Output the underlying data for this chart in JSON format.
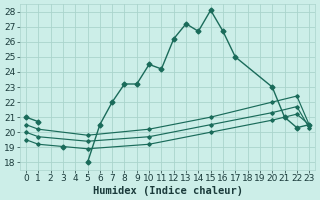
{
  "xlabel": "Humidex (Indice chaleur)",
  "bg_color": "#cceee8",
  "grid_color": "#aad4cc",
  "line_color": "#1a6b5a",
  "xlim": [
    -0.5,
    23.5
  ],
  "ylim": [
    17.5,
    28.5
  ],
  "xticks": [
    0,
    1,
    2,
    3,
    4,
    5,
    6,
    7,
    8,
    9,
    10,
    11,
    12,
    13,
    14,
    15,
    16,
    17,
    18,
    19,
    20,
    21,
    22,
    23
  ],
  "yticks": [
    18,
    19,
    20,
    21,
    22,
    23,
    24,
    25,
    26,
    27,
    28
  ],
  "main_line_x": [
    0,
    1,
    2,
    3,
    4,
    5,
    6,
    7,
    8,
    9,
    10,
    11,
    12,
    13,
    14,
    15,
    16,
    17,
    20,
    21,
    22,
    23
  ],
  "main_line_y": [
    21.0,
    20.7,
    null,
    19.0,
    null,
    18.0,
    20.5,
    22.0,
    23.2,
    23.2,
    24.5,
    24.2,
    26.2,
    27.2,
    26.7,
    28.1,
    26.7,
    25.0,
    23.0,
    21.0,
    20.3,
    20.5
  ],
  "straight_lines": [
    {
      "x": [
        0,
        1,
        5,
        10,
        15,
        20,
        22,
        23
      ],
      "y": [
        20.5,
        20.2,
        19.8,
        20.2,
        21.0,
        22.0,
        22.4,
        20.5
      ]
    },
    {
      "x": [
        0,
        1,
        5,
        10,
        15,
        20,
        22,
        23
      ],
      "y": [
        20.0,
        19.7,
        19.4,
        19.7,
        20.5,
        21.3,
        21.7,
        20.3
      ]
    },
    {
      "x": [
        0,
        1,
        5,
        10,
        15,
        20,
        22,
        23
      ],
      "y": [
        19.5,
        19.2,
        18.9,
        19.2,
        20.0,
        20.8,
        21.2,
        20.5
      ]
    }
  ],
  "tick_fontsize": 6.5,
  "label_fontsize": 7.5
}
